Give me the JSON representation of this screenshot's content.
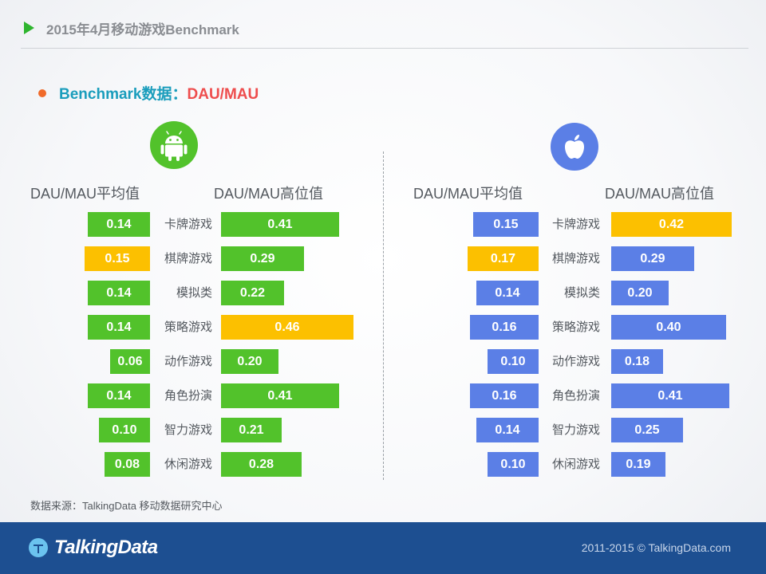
{
  "header": {
    "title": "2015年4月移动游戏Benchmark"
  },
  "subtitle": {
    "main": "Benchmark数据：",
    "accent": "DAU/MAU"
  },
  "colors": {
    "android": "#52c22b",
    "ios": "#5b7fe6",
    "highlight": "#fcc000",
    "accent_text": "#ee4d4d",
    "footer": "#1d4f91"
  },
  "chart_data": [
    {
      "type": "bar",
      "platform": "android-icon",
      "series": [
        {
          "name": "DAU/MAU平均值",
          "values": [
            0.14,
            0.15,
            0.14,
            0.14,
            0.06,
            0.14,
            0.1,
            0.08
          ],
          "highlight_index": 1
        },
        {
          "name": "DAU/MAU高位值",
          "values": [
            0.41,
            0.29,
            0.22,
            0.46,
            0.2,
            0.41,
            0.21,
            0.28
          ],
          "highlight_index": 3
        }
      ],
      "categories": [
        "卡牌游戏",
        "棋牌游戏",
        "模拟类",
        "策略游戏",
        "动作游戏",
        "角色扮演",
        "智力游戏",
        "休闲游戏"
      ],
      "labels": [
        "0.14",
        "0.15",
        "0.14",
        "0.14",
        "0.06",
        "0.14",
        "0.10",
        "0.08",
        "0.41",
        "0.29",
        "0.22",
        "0.46",
        "0.20",
        "0.41",
        "0.21",
        "0.28"
      ]
    },
    {
      "type": "bar",
      "platform": "apple-icon",
      "series": [
        {
          "name": "DAU/MAU平均值",
          "values": [
            0.15,
            0.17,
            0.14,
            0.16,
            0.1,
            0.16,
            0.14,
            0.1
          ],
          "highlight_index": 1
        },
        {
          "name": "DAU/MAU高位值",
          "values": [
            0.42,
            0.29,
            0.2,
            0.4,
            0.18,
            0.41,
            0.25,
            0.19
          ],
          "highlight_index": 0
        }
      ],
      "categories": [
        "卡牌游戏",
        "棋牌游戏",
        "模拟类",
        "策略游戏",
        "动作游戏",
        "角色扮演",
        "智力游戏",
        "休闲游戏"
      ],
      "labels": [
        "0.15",
        "0.17",
        "0.14",
        "0.16",
        "0.10",
        "0.16",
        "0.14",
        "0.10",
        "0.42",
        "0.29",
        "0.20",
        "0.40",
        "0.18",
        "0.41",
        "0.25",
        "0.19"
      ]
    }
  ],
  "source": "数据来源：TalkingData 移动数据研究中心",
  "footer": {
    "logo": "TalkingData",
    "copyright": "2011-2015 © TalkingData.com"
  }
}
